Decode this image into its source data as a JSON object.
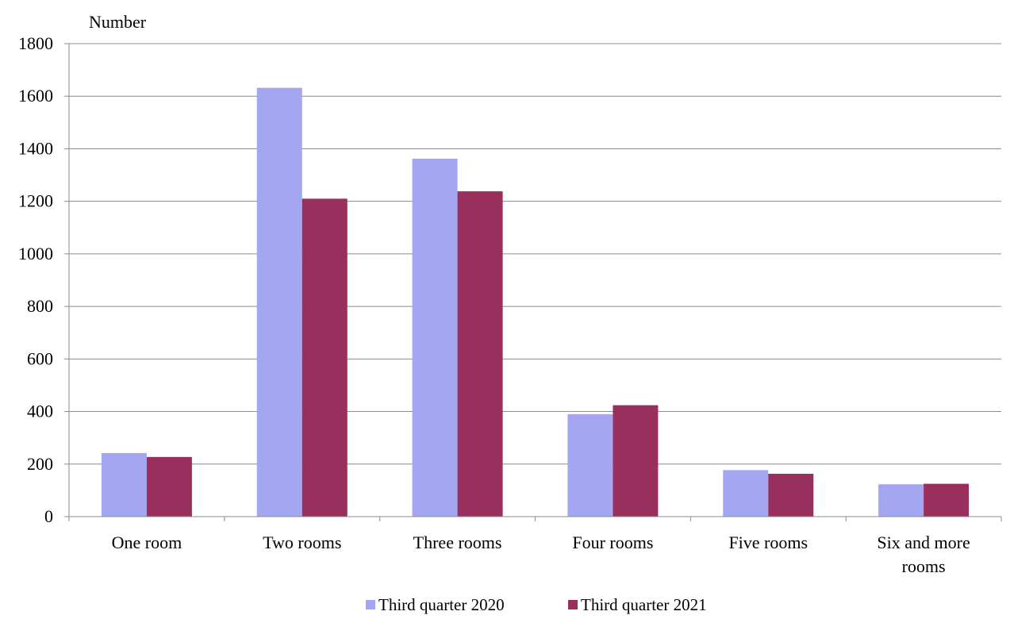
{
  "chart_data": {
    "type": "bar",
    "title": "",
    "ylabel": "Number",
    "xlabel": "",
    "ylim": [
      0,
      1800
    ],
    "yticks": [
      0,
      200,
      400,
      600,
      800,
      1000,
      1200,
      1400,
      1600,
      1800
    ],
    "grid": true,
    "legend_position": "bottom",
    "categories": [
      [
        "One room"
      ],
      [
        "Two rooms"
      ],
      [
        "Three rooms"
      ],
      [
        "Four rooms"
      ],
      [
        "Five rooms"
      ],
      [
        "Six and more",
        "rooms"
      ]
    ],
    "series": [
      {
        "name": "Third quarter 2020",
        "color": "#a4a6f2",
        "values": [
          242,
          1632,
          1362,
          390,
          177,
          123
        ]
      },
      {
        "name": "Third quarter 2021",
        "color": "#992f5d",
        "values": [
          227,
          1210,
          1238,
          424,
          163,
          125
        ]
      }
    ]
  }
}
